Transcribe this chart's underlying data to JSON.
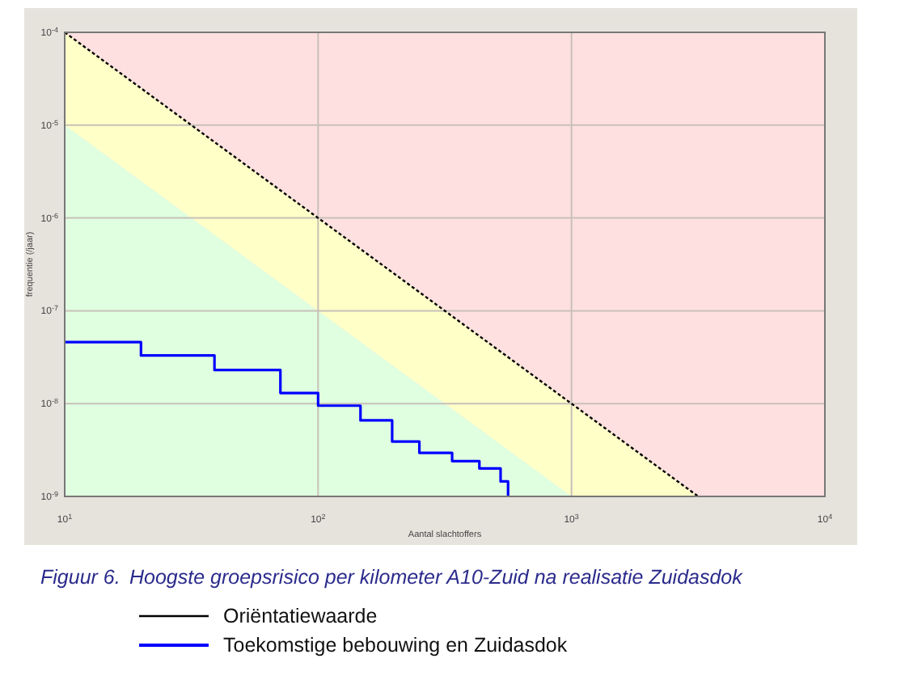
{
  "chart_data": {
    "type": "line",
    "title": "Figuur 6.\tHoogste groepsrisico per kilometer A10-Zuid na realisatie Zuidasdok",
    "xlabel": "Aantal slachtoffers",
    "ylabel": "frequentie (/jaar)",
    "log": "xy",
    "grid": true,
    "legend": "bottom",
    "xlim": [
      10,
      10000
    ],
    "ylim": [
      1e-09,
      0.0001
    ],
    "xticks": [
      {
        "value": 10,
        "label": "10$^{1}$"
      },
      {
        "value": 100,
        "label": "10$^{2}$"
      },
      {
        "value": 1000,
        "label": "10$^{3}$"
      },
      {
        "value": 10000,
        "label": "10$^{4}$"
      }
    ],
    "yticks": [
      {
        "value": 1e-09,
        "label": "10$^{-9}$"
      },
      {
        "value": 1e-08,
        "label": "10$^{-8}$"
      },
      {
        "value": 1e-07,
        "label": "10$^{-7}$"
      },
      {
        "value": 1e-06,
        "label": "10$^{-6}$"
      },
      {
        "value": 1e-05,
        "label": "10$^{-5}$"
      },
      {
        "value": 0.0001,
        "label": "10$^{-4}$"
      }
    ],
    "bands": [
      {
        "axis": "y",
        "from": 1e-09,
        "to": 0.0001,
        "color": "#ffe0e0"
      }
    ],
    "series": [
      {
        "type": "area",
        "color": "#e0ffe0",
        "x": [
          10,
          100,
          1000
        ],
        "values": [
          1e-05,
          1e-07,
          1e-09
        ]
      },
      {
        "name": "Oriëntatiewaarde",
        "type": "line",
        "color": "#000000",
        "line_style": "dotted",
        "x": [
          10,
          100,
          1000,
          3162
        ],
        "values": [
          0.0001,
          1e-06,
          1e-08,
          1e-09
        ],
        "lower": [
          1e-05,
          1e-07,
          1e-09,
          1e-09
        ],
        "upper": [
          0.0001,
          1e-06,
          1e-08,
          1e-09
        ]
      },
      {
        "name": "Toekomstige bebouwing en Zuidasdok",
        "type": "step",
        "color": "#0000ff",
        "line_style": "solid",
        "x": [
          10,
          20,
          39,
          71,
          100,
          147,
          196,
          251,
          338,
          433,
          525,
          562,
          562
        ],
        "values": [
          4.6e-08,
          3.3e-08,
          2.3e-08,
          1.3e-08,
          9.5e-09,
          6.6e-09,
          3.9e-09,
          2.95e-09,
          2.4e-09,
          2e-09,
          1.45e-09,
          1.15e-09,
          1e-09
        ]
      }
    ]
  }
}
